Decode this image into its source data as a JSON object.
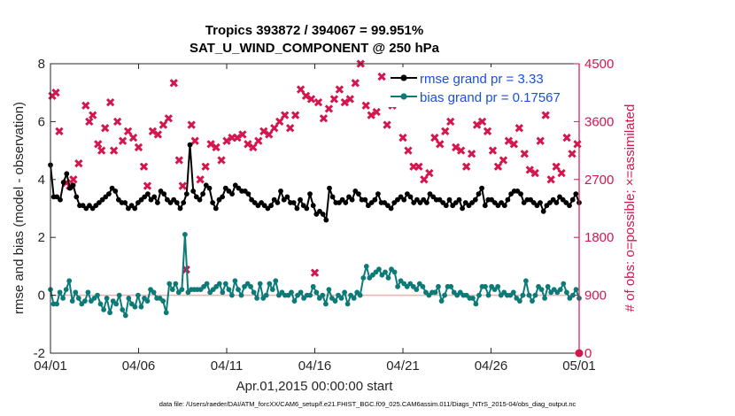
{
  "title_line1": "Tropics 393872 / 394067 = 99.951%",
  "title_line2": "SAT_U_WIND_COMPONENT @ 250 hPa",
  "footer": "data file: /Users/raeder/DAI/ATM_forcXX/CAM6_setup/f.e21.FHIST_BGC.f09_025.CAM6assim.011/Diags_NTrS_2015-04/obs_diag_output.nc",
  "colors": {
    "rmse": "#000000",
    "bias": "#0c7b78",
    "obs": "#d4164e",
    "zero": "#e8b4b4",
    "legend_text": "#1a4fe0"
  },
  "chart_data": {
    "type": "line",
    "xlabel": "Apr.01,2015 00:00:00 start",
    "ylabel": "rmse and bias (model - observation)",
    "y2label": "# of obs: o=possible; ×=assimilated",
    "xlim": [
      0,
      30
    ],
    "ylim": [
      -2,
      8
    ],
    "y2lim": [
      0,
      4500
    ],
    "xticks": [
      0,
      5,
      10,
      15,
      20,
      25,
      30
    ],
    "xtick_labels": [
      "04/01",
      "04/06",
      "04/11",
      "04/16",
      "04/21",
      "04/26",
      "05/01"
    ],
    "yticks": [
      -2,
      0,
      2,
      4,
      6,
      8
    ],
    "y2ticks": [
      0,
      900,
      1800,
      2700,
      3600,
      4500
    ],
    "legend": [
      "rmse grand pr = 3.33",
      "bias grand pr = 0.17567"
    ],
    "series": [
      {
        "name": "rmse grand pr = 3.33",
        "values": [
          4.5,
          3.4,
          3.4,
          3.3,
          3.9,
          4.2,
          3.7,
          3.8,
          3.4,
          3.1,
          3.1,
          3.0,
          3.1,
          3.0,
          3.1,
          3.2,
          3.3,
          3.4,
          3.5,
          3.7,
          3.6,
          3.3,
          3.2,
          3.2,
          3.0,
          3.1,
          3.0,
          3.2,
          3.3,
          3.4,
          3.5,
          3.3,
          3.4,
          3.2,
          3.6,
          3.5,
          3.3,
          3.2,
          3.3,
          3.2,
          3.0,
          3.2,
          3.5,
          5.2,
          3.6,
          3.4,
          3.3,
          3.5,
          3.8,
          3.7,
          3.2,
          3.0,
          3.3,
          3.4,
          3.7,
          3.6,
          3.5,
          3.8,
          3.7,
          3.6,
          3.6,
          3.5,
          3.3,
          3.2,
          3.1,
          3.2,
          3.1,
          3.0,
          3.1,
          3.3,
          3.2,
          3.6,
          3.3,
          3.4,
          3.2,
          3.2,
          3.0,
          3.3,
          3.1,
          3.0,
          3.5,
          3.1,
          2.8,
          2.9,
          2.8,
          2.6,
          3.7,
          3.4,
          3.2,
          3.2,
          3.3,
          3.2,
          3.4,
          3.3,
          3.6,
          3.5,
          3.3,
          3.3,
          3.1,
          3.2,
          3.3,
          3.5,
          3.2,
          3.2,
          3.1,
          3.0,
          3.2,
          3.3,
          3.4,
          3.3,
          3.5,
          3.4,
          3.2,
          3.3,
          3.2,
          3.3,
          3.2,
          3.5,
          3.4,
          3.3,
          3.3,
          3.2,
          3.1,
          3.3,
          3.1,
          3.2,
          3.3,
          3.0,
          3.2,
          3.1,
          3.2,
          3.3,
          3.5,
          3.7,
          3.1,
          3.3,
          3.3,
          3.2,
          3.1,
          3.2,
          3.1,
          3.3,
          3.5,
          3.6,
          3.6,
          3.5,
          3.2,
          3.3,
          3.3,
          3.2,
          3.1,
          3.2,
          2.9,
          3.1,
          3.2,
          3.3,
          3.2,
          3.4,
          3.3,
          3.2,
          3.1,
          3.3,
          3.5,
          3.2
        ]
      },
      {
        "name": "bias grand pr = 0.17567",
        "values": [
          0.2,
          -0.3,
          -0.3,
          0.1,
          -0.1,
          0.2,
          0.5,
          -0.2,
          0.1,
          -0.1,
          -0.3,
          -0.2,
          0.1,
          -0.2,
          -0.1,
          0.0,
          -0.3,
          -0.5,
          -0.1,
          -0.6,
          -0.2,
          -0.3,
          0.0,
          -0.5,
          -0.7,
          -0.1,
          -0.3,
          -0.4,
          0.0,
          -0.4,
          -0.1,
          -0.2,
          0.2,
          0.1,
          -0.1,
          -0.1,
          -0.2,
          -0.6,
          0.4,
          0.2,
          0.4,
          0.1,
          0.2,
          2.1,
          0.1,
          0.2,
          0.2,
          0.2,
          0.2,
          0.3,
          0.4,
          0.1,
          0.2,
          0.3,
          0.4,
          0.1,
          0.4,
          0.2,
          0.0,
          0.5,
          0.2,
          0.0,
          0.3,
          0.4,
          0.3,
          0.1,
          -0.1,
          0.4,
          -0.1,
          0.0,
          0.4,
          0.2,
          0.5,
          0.0,
          0.1,
          0.0,
          0.0,
          0.1,
          -0.2,
          0.0,
          0.1,
          -0.1,
          0.0,
          0.0,
          0.3,
          0.1,
          -0.1,
          0.0,
          -0.3,
          0.2,
          -0.1,
          -0.2,
          0.0,
          -0.1,
          0.1,
          -0.3,
          0.0,
          -0.1,
          0.1,
          0.0,
          0.6,
          1.0,
          0.6,
          0.7,
          0.8,
          0.9,
          0.7,
          0.8,
          0.6,
          0.9,
          0.8,
          0.3,
          0.5,
          0.4,
          0.3,
          0.4,
          0.3,
          0.2,
          0.4,
          0.3,
          0.1,
          0.0,
          0.1,
          0.1,
          0.3,
          -0.2,
          0.0,
          0.3,
          0.3,
          0.1,
          0.0,
          0.1,
          0.0,
          0.0,
          -0.1,
          -0.1,
          -0.3,
          0.0,
          0.3,
          0.3,
          0.0,
          0.3,
          0.2,
          0.3,
          0.0,
          0.1,
          0.0,
          0.0,
          0.1,
          -0.1,
          -0.2,
          0.0,
          0.5,
          0.0,
          -0.2,
          0.0,
          0.3,
          0.2,
          -0.1,
          0.3,
          0.1,
          0.2,
          0.1,
          0.2,
          0.4,
          0.1,
          -0.1,
          0.0,
          0.2,
          -0.1
        ]
      },
      {
        "name": "# of obs assimilated (right axis)",
        "points": [
          [
            0.1,
            4000
          ],
          [
            0.3,
            4050
          ],
          [
            0.5,
            3450
          ],
          [
            0.9,
            2650
          ],
          [
            1.1,
            2600
          ],
          [
            1.3,
            2700
          ],
          [
            1.6,
            2950
          ],
          [
            2.0,
            3850
          ],
          [
            2.2,
            3600
          ],
          [
            2.4,
            3700
          ],
          [
            2.7,
            3250
          ],
          [
            2.9,
            3150
          ],
          [
            3.1,
            3500
          ],
          [
            3.4,
            3900
          ],
          [
            3.6,
            3150
          ],
          [
            3.8,
            3600
          ],
          [
            4.1,
            3300
          ],
          [
            4.4,
            3450
          ],
          [
            4.7,
            3350
          ],
          [
            5.0,
            3200
          ],
          [
            5.3,
            2900
          ],
          [
            5.5,
            2600
          ],
          [
            5.8,
            3450
          ],
          [
            6.1,
            3400
          ],
          [
            6.4,
            3550
          ],
          [
            6.7,
            3650
          ],
          [
            7.0,
            4200
          ],
          [
            7.3,
            3000
          ],
          [
            7.5,
            2600
          ],
          [
            7.7,
            1300
          ],
          [
            8.0,
            3550
          ],
          [
            8.2,
            3300
          ],
          [
            8.5,
            2700
          ],
          [
            8.8,
            2900
          ],
          [
            9.1,
            3250
          ],
          [
            9.4,
            3200
          ],
          [
            9.7,
            3000
          ],
          [
            10.0,
            3300
          ],
          [
            10.3,
            3350
          ],
          [
            10.6,
            3350
          ],
          [
            10.9,
            3400
          ],
          [
            11.2,
            3250
          ],
          [
            11.5,
            3200
          ],
          [
            11.8,
            3300
          ],
          [
            12.1,
            3450
          ],
          [
            12.4,
            3400
          ],
          [
            12.7,
            3500
          ],
          [
            13.0,
            3600
          ],
          [
            13.3,
            3700
          ],
          [
            13.6,
            3500
          ],
          [
            13.9,
            3700
          ],
          [
            14.2,
            4100
          ],
          [
            14.5,
            4000
          ],
          [
            14.8,
            3950
          ],
          [
            15.0,
            1250
          ],
          [
            15.2,
            3900
          ],
          [
            15.5,
            3650
          ],
          [
            15.8,
            3800
          ],
          [
            16.1,
            3950
          ],
          [
            16.4,
            4100
          ],
          [
            16.7,
            3900
          ],
          [
            17.0,
            3950
          ],
          [
            17.3,
            4200
          ],
          [
            17.6,
            4500
          ],
          [
            17.9,
            3850
          ],
          [
            18.2,
            3700
          ],
          [
            18.5,
            3750
          ],
          [
            18.8,
            4300
          ],
          [
            19.1,
            3550
          ],
          [
            19.4,
            3850
          ],
          [
            19.7,
            3950
          ],
          [
            20.0,
            3350
          ],
          [
            20.3,
            3150
          ],
          [
            20.6,
            2900
          ],
          [
            20.9,
            2900
          ],
          [
            21.2,
            2700
          ],
          [
            21.5,
            2800
          ],
          [
            21.8,
            3350
          ],
          [
            22.1,
            3250
          ],
          [
            22.4,
            3450
          ],
          [
            22.7,
            3600
          ],
          [
            23.0,
            3200
          ],
          [
            23.3,
            3150
          ],
          [
            23.6,
            2900
          ],
          [
            23.9,
            3100
          ],
          [
            24.2,
            3550
          ],
          [
            24.5,
            3600
          ],
          [
            24.8,
            3450
          ],
          [
            25.1,
            3150
          ],
          [
            25.4,
            2900
          ],
          [
            25.7,
            3000
          ],
          [
            26.0,
            3300
          ],
          [
            26.3,
            3250
          ],
          [
            26.6,
            3500
          ],
          [
            26.9,
            3100
          ],
          [
            27.2,
            2850
          ],
          [
            27.5,
            2800
          ],
          [
            27.8,
            3300
          ],
          [
            28.1,
            3700
          ],
          [
            28.4,
            2700
          ],
          [
            28.7,
            2900
          ],
          [
            29.0,
            2800
          ],
          [
            29.3,
            3350
          ],
          [
            29.6,
            3100
          ],
          [
            29.9,
            3250
          ]
        ]
      },
      {
        "name": "# of obs possible (right axis)",
        "points": [
          [
            30,
            0
          ]
        ]
      }
    ]
  }
}
